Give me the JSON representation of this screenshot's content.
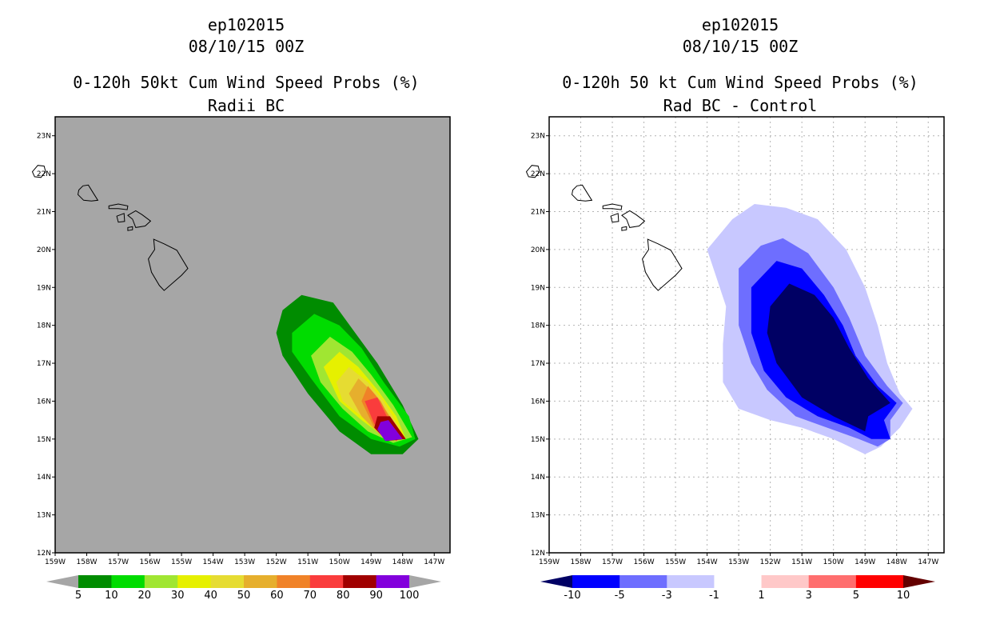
{
  "left": {
    "title_line1": "ep102015",
    "title_line2": "08/10/15 00Z",
    "title_line3": "0-120h 50kt Cum Wind Speed Probs (%)",
    "title_line4": "Radii BC",
    "colorbar": {
      "labels": [
        "5",
        "10",
        "20",
        "30",
        "40",
        "50",
        "60",
        "70",
        "80",
        "90",
        "100"
      ],
      "colors": [
        "#008c00",
        "#00dc00",
        "#a0e632",
        "#e6f000",
        "#e6dc32",
        "#e6af2d",
        "#f08228",
        "#fa3c3c",
        "#a00000",
        "#8200dc"
      ],
      "under_color": "#a6a6a6",
      "over_color": "#a6a6a6"
    },
    "background_color": "#a6a6a6"
  },
  "right": {
    "title_line1": "ep102015",
    "title_line2": "08/10/15 00Z",
    "title_line3": "0-120h 50 kt Cum Wind Speed Probs (%)",
    "title_line4": "Rad BC - Control",
    "colorbar": {
      "labels": [
        "-10",
        "-5",
        "-3",
        "-1",
        "1",
        "3",
        "5",
        "10"
      ],
      "colors": [
        "#0000ff",
        "#6e6eff",
        "#c8c8ff",
        "#ffffff",
        "#ffc8c8",
        "#ff6e6e",
        "#ff0000"
      ],
      "under_color": "#000064",
      "over_color": "#640000"
    },
    "background_color": "#ffffff"
  },
  "chart_data": [
    {
      "type": "filled-contour-map",
      "title": "0-120h 50kt Cum Wind Speed Probs (%) - Radii BC",
      "xlim": [
        -159,
        -146.5
      ],
      "ylim": [
        12,
        23.5
      ],
      "x_ticks": [
        "159W",
        "158W",
        "157W",
        "156W",
        "155W",
        "154W",
        "153W",
        "152W",
        "151W",
        "150W",
        "149W",
        "148W",
        "147W"
      ],
      "y_ticks": [
        "12N",
        "13N",
        "14N",
        "15N",
        "16N",
        "17N",
        "18N",
        "19N",
        "20N",
        "21N",
        "22N",
        "23N"
      ],
      "levels": [
        5,
        10,
        20,
        30,
        40,
        50,
        60,
        70,
        80,
        90,
        100
      ],
      "grid": false,
      "contours": [
        {
          "level": 5,
          "polygon": [
            [
              -151.8,
              18.4
            ],
            [
              -151.2,
              18.8
            ],
            [
              -150.2,
              18.6
            ],
            [
              -149.5,
              17.8
            ],
            [
              -148.8,
              17.0
            ],
            [
              -148.0,
              15.9
            ],
            [
              -147.5,
              15.0
            ],
            [
              -148.0,
              14.6
            ],
            [
              -149.0,
              14.6
            ],
            [
              -150.0,
              15.2
            ],
            [
              -151.0,
              16.2
            ],
            [
              -151.8,
              17.2
            ],
            [
              -152.0,
              17.8
            ]
          ]
        },
        {
          "level": 10,
          "polygon": [
            [
              -151.5,
              17.8
            ],
            [
              -150.8,
              18.3
            ],
            [
              -150.0,
              18.0
            ],
            [
              -149.3,
              17.4
            ],
            [
              -148.6,
              16.5
            ],
            [
              -147.8,
              15.6
            ],
            [
              -147.6,
              15.0
            ],
            [
              -148.1,
              14.8
            ],
            [
              -149.0,
              15.0
            ],
            [
              -150.0,
              15.6
            ],
            [
              -150.9,
              16.6
            ],
            [
              -151.5,
              17.3
            ]
          ]
        },
        {
          "level": 20,
          "polygon": [
            [
              -150.9,
              17.2
            ],
            [
              -150.3,
              17.7
            ],
            [
              -149.6,
              17.3
            ],
            [
              -149.0,
              16.7
            ],
            [
              -148.3,
              15.9
            ],
            [
              -147.7,
              15.05
            ],
            [
              -148.3,
              14.9
            ],
            [
              -149.1,
              15.2
            ],
            [
              -149.9,
              15.8
            ],
            [
              -150.6,
              16.5
            ]
          ]
        },
        {
          "level": 30,
          "polygon": [
            [
              -150.5,
              16.9
            ],
            [
              -150.0,
              17.3
            ],
            [
              -149.4,
              16.9
            ],
            [
              -148.8,
              16.3
            ],
            [
              -148.2,
              15.6
            ],
            [
              -147.9,
              15.0
            ],
            [
              -148.5,
              15.0
            ],
            [
              -149.3,
              15.5
            ],
            [
              -150.0,
              16.0
            ]
          ]
        },
        {
          "level": 40,
          "polygon": [
            [
              -150.1,
              16.5
            ],
            [
              -149.7,
              16.9
            ],
            [
              -149.1,
              16.5
            ],
            [
              -148.6,
              16.0
            ],
            [
              -148.1,
              15.3
            ],
            [
              -148.6,
              15.1
            ],
            [
              -149.3,
              15.6
            ],
            [
              -149.9,
              16.0
            ]
          ]
        },
        {
          "level": 50,
          "polygon": [
            [
              -149.7,
              16.2
            ],
            [
              -149.4,
              16.6
            ],
            [
              -148.9,
              16.2
            ],
            [
              -148.4,
              15.6
            ],
            [
              -148.1,
              15.2
            ],
            [
              -148.7,
              15.1
            ],
            [
              -149.3,
              15.6
            ]
          ]
        },
        {
          "level": 60,
          "polygon": [
            [
              -149.3,
              16.0
            ],
            [
              -149.1,
              16.4
            ],
            [
              -148.7,
              16.0
            ],
            [
              -148.3,
              15.4
            ],
            [
              -148.2,
              15.1
            ],
            [
              -148.9,
              15.3
            ]
          ]
        },
        {
          "level": 70,
          "polygon": [
            [
              -149.2,
              16.0
            ],
            [
              -148.8,
              16.1
            ],
            [
              -148.5,
              15.6
            ],
            [
              -148.0,
              15.1
            ],
            [
              -148.2,
              14.95
            ],
            [
              -148.9,
              15.4
            ]
          ]
        },
        {
          "level": 80,
          "polygon": [
            [
              -148.8,
              15.6
            ],
            [
              -148.4,
              15.6
            ],
            [
              -147.9,
              15.0
            ],
            [
              -148.5,
              14.95
            ],
            [
              -148.9,
              15.3
            ]
          ]
        },
        {
          "level": 90,
          "polygon": [
            [
              -148.7,
              15.45
            ],
            [
              -148.45,
              15.5
            ],
            [
              -148.0,
              15.0
            ],
            [
              -148.55,
              14.95
            ],
            [
              -148.8,
              15.25
            ]
          ]
        }
      ],
      "colorbar_labels": [
        "5",
        "10",
        "20",
        "30",
        "40",
        "50",
        "60",
        "70",
        "80",
        "90",
        "100"
      ]
    },
    {
      "type": "filled-contour-map",
      "title": "0-120h 50 kt Cum Wind Speed Probs (%) - Rad BC - Control",
      "xlim": [
        -159,
        -146.5
      ],
      "ylim": [
        12,
        23.5
      ],
      "x_ticks": [
        "159W",
        "158W",
        "157W",
        "156W",
        "155W",
        "154W",
        "153W",
        "152W",
        "151W",
        "150W",
        "149W",
        "148W",
        "147W"
      ],
      "y_ticks": [
        "12N",
        "13N",
        "14N",
        "15N",
        "16N",
        "17N",
        "18N",
        "19N",
        "20N",
        "21N",
        "22N",
        "23N"
      ],
      "levels": [
        -10,
        -5,
        -3,
        -1,
        1,
        3,
        5,
        10
      ],
      "grid": true,
      "contours": [
        {
          "level": -1,
          "polygon": [
            [
              -154.0,
              20.0
            ],
            [
              -153.2,
              20.8
            ],
            [
              -152.5,
              21.2
            ],
            [
              -151.5,
              21.1
            ],
            [
              -150.5,
              20.8
            ],
            [
              -149.6,
              20.0
            ],
            [
              -149.0,
              19.0
            ],
            [
              -148.6,
              18.0
            ],
            [
              -148.3,
              17.0
            ],
            [
              -147.9,
              16.2
            ],
            [
              -147.5,
              15.8
            ],
            [
              -147.9,
              15.3
            ],
            [
              -148.5,
              14.8
            ],
            [
              -149.0,
              14.6
            ],
            [
              -150.0,
              15.0
            ],
            [
              -151.0,
              15.3
            ],
            [
              -152.0,
              15.5
            ],
            [
              -153.0,
              15.8
            ],
            [
              -153.5,
              16.5
            ],
            [
              -153.5,
              17.5
            ],
            [
              -153.4,
              18.5
            ]
          ]
        },
        {
          "level": -3,
          "polygon": [
            [
              -153.0,
              19.5
            ],
            [
              -152.3,
              20.1
            ],
            [
              -151.6,
              20.3
            ],
            [
              -150.8,
              19.9
            ],
            [
              -150.0,
              19.0
            ],
            [
              -149.5,
              18.2
            ],
            [
              -149.0,
              17.2
            ],
            [
              -148.3,
              16.4
            ],
            [
              -147.8,
              15.95
            ],
            [
              -148.2,
              15.5
            ],
            [
              -148.2,
              15.0
            ],
            [
              -148.6,
              14.8
            ],
            [
              -149.2,
              15.0
            ],
            [
              -150.2,
              15.3
            ],
            [
              -151.2,
              15.6
            ],
            [
              -152.1,
              16.3
            ],
            [
              -152.6,
              17.0
            ],
            [
              -153.0,
              18.0
            ]
          ]
        },
        {
          "level": -5,
          "polygon": [
            [
              -152.6,
              19.0
            ],
            [
              -151.8,
              19.7
            ],
            [
              -151.0,
              19.5
            ],
            [
              -150.3,
              18.8
            ],
            [
              -149.7,
              18.0
            ],
            [
              -149.3,
              17.2
            ],
            [
              -148.6,
              16.4
            ],
            [
              -148.0,
              15.95
            ],
            [
              -148.4,
              15.5
            ],
            [
              -148.2,
              15.0
            ],
            [
              -148.8,
              15.0
            ],
            [
              -149.5,
              15.3
            ],
            [
              -150.5,
              15.6
            ],
            [
              -151.5,
              16.1
            ],
            [
              -152.2,
              16.8
            ],
            [
              -152.6,
              17.8
            ]
          ]
        },
        {
          "level": -10,
          "polygon": [
            [
              -152.0,
              18.5
            ],
            [
              -151.4,
              19.1
            ],
            [
              -150.6,
              18.8
            ],
            [
              -150.0,
              18.2
            ],
            [
              -149.5,
              17.4
            ],
            [
              -148.9,
              16.6
            ],
            [
              -148.2,
              15.95
            ],
            [
              -148.9,
              15.6
            ],
            [
              -149.0,
              15.2
            ],
            [
              -150.0,
              15.6
            ],
            [
              -151.0,
              16.1
            ],
            [
              -151.8,
              17.0
            ],
            [
              -152.1,
              17.8
            ]
          ]
        }
      ],
      "colorbar_labels": [
        "-10",
        "-5",
        "-3",
        "-1",
        "1",
        "3",
        "5",
        "10"
      ]
    }
  ]
}
